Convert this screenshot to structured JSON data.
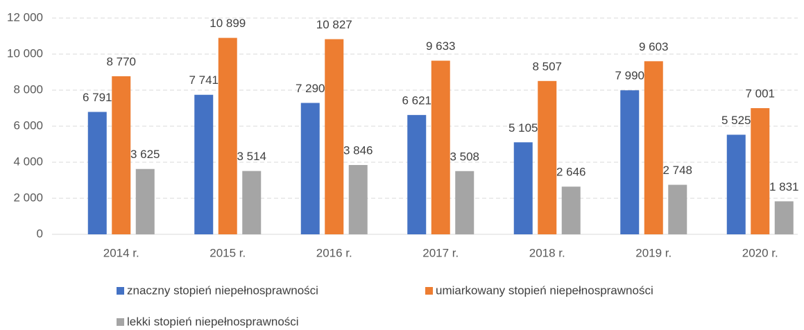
{
  "chart_data": {
    "type": "bar",
    "categories": [
      "2014 r.",
      "2015 r.",
      "2016 r.",
      "2017 r.",
      "2018 r.",
      "2019 r.",
      "2020 r."
    ],
    "series": [
      {
        "name": "znaczny stopień niepełnosprawności",
        "color": "#4472c4",
        "values": [
          6791,
          7741,
          7290,
          6621,
          5105,
          7990,
          5525
        ],
        "value_labels": [
          "6 791",
          "7 741",
          "7 290",
          "6 621",
          "5 105",
          "7 990",
          "5 525"
        ]
      },
      {
        "name": "umiarkowany stopień niepełnosprawności",
        "color": "#ed7d31",
        "values": [
          8770,
          10899,
          10827,
          9633,
          8507,
          9603,
          7001
        ],
        "value_labels": [
          "8 770",
          "10 899",
          "10 827",
          "9 633",
          "8 507",
          "9 603",
          "7 001"
        ]
      },
      {
        "name": "lekki stopień niepełnosprawności",
        "color": "#a5a5a5",
        "values": [
          3625,
          3514,
          3846,
          3508,
          2646,
          2748,
          1831
        ],
        "value_labels": [
          "3 625",
          "3 514",
          "3 846",
          "3 508",
          "2 646",
          "2 748",
          "1 831"
        ]
      }
    ],
    "ylim": [
      0,
      12000
    ],
    "yticks": [
      0,
      {
        "value": 2000,
        "label": "2 000"
      },
      {
        "value": 4000,
        "label": "4 000"
      },
      {
        "value": 6000,
        "label": "6 000"
      },
      {
        "value": 8000,
        "label": "8 000"
      },
      {
        "value": 10000,
        "label": "10 000"
      },
      {
        "value": 12000,
        "label": "12 000"
      }
    ],
    "grid": true,
    "legend": "bottom"
  }
}
